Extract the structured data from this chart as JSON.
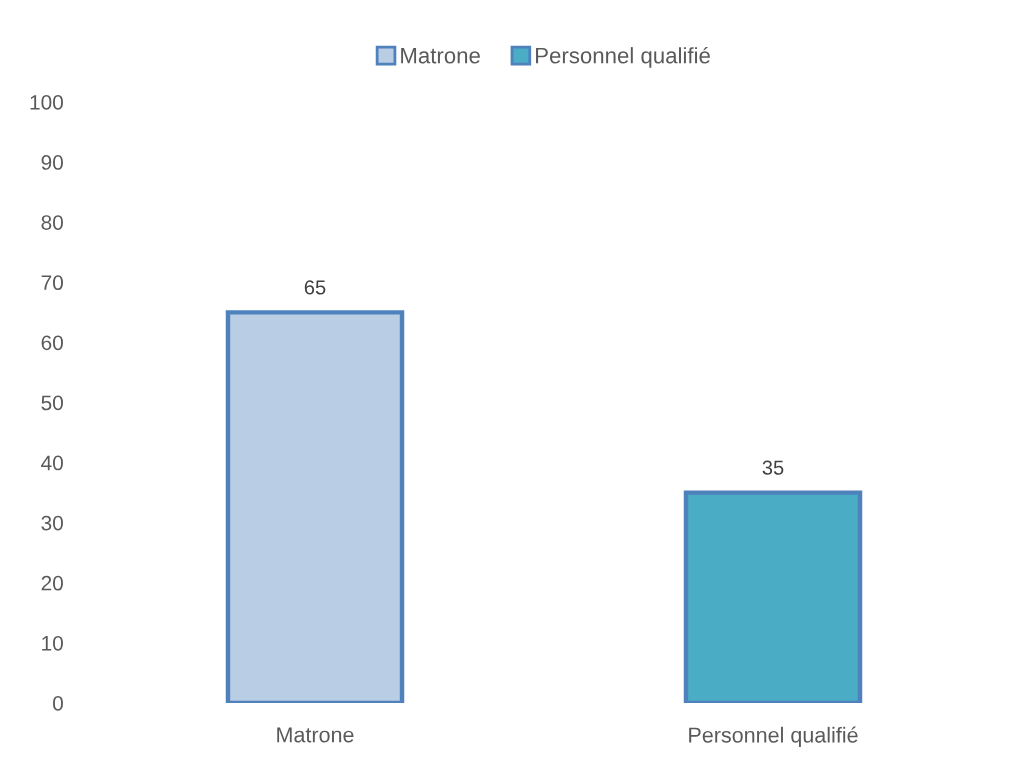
{
  "chart_data": {
    "type": "bar",
    "categories": [
      "Matrone",
      "Personnel qualifié"
    ],
    "series": [
      {
        "name": "Matrone",
        "color": "#b9cde5",
        "values": [
          65,
          null
        ]
      },
      {
        "name": "Personnel qualifié",
        "color": "#4bacc6",
        "values": [
          null,
          35
        ]
      }
    ],
    "stacked": true,
    "ylim": [
      0,
      100
    ],
    "yticks": [
      0,
      10,
      20,
      30,
      40,
      50,
      60,
      70,
      80,
      90,
      100
    ],
    "data_labels": true,
    "legend": "top",
    "grid": false
  }
}
